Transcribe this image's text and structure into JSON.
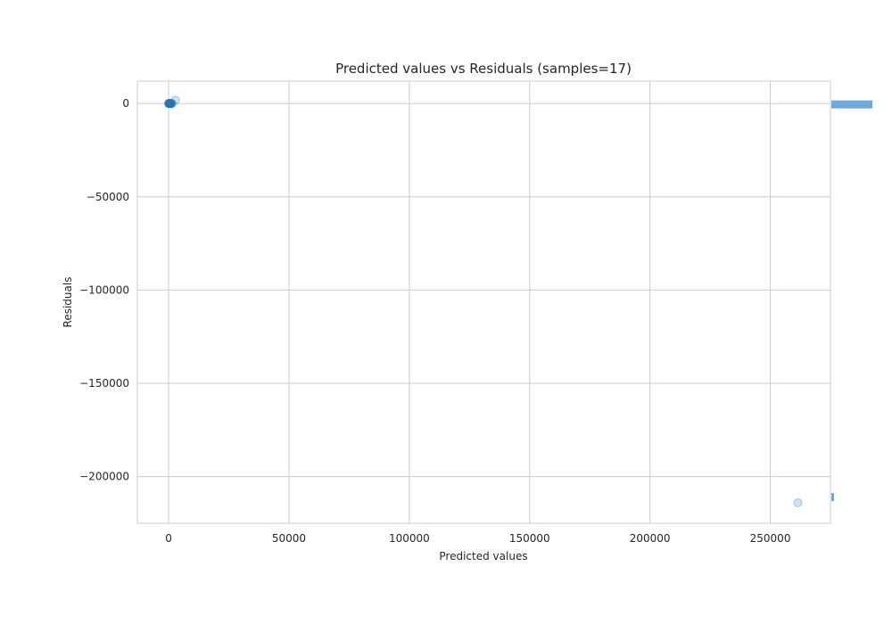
{
  "chart_data": {
    "type": "scatter",
    "title": "Predicted values vs Residuals (samples=17)",
    "xlabel": "Predicted values",
    "ylabel": "Residuals",
    "xlim": [
      -13000,
      275000
    ],
    "ylim": [
      -225000,
      12000
    ],
    "xticks": [
      0,
      50000,
      100000,
      150000,
      200000,
      250000
    ],
    "yticks": [
      0,
      -50000,
      -100000,
      -150000,
      -200000
    ],
    "grid": true,
    "point_color": "#1f77b4",
    "histogram_color": "#6fa8dc",
    "points": [
      {
        "x": 2800,
        "y": 1800
      },
      {
        "x": 1500,
        "y": 0
      },
      {
        "x": 1200,
        "y": -50
      },
      {
        "x": 1000,
        "y": 30
      },
      {
        "x": 900,
        "y": -80
      },
      {
        "x": 700,
        "y": 20
      },
      {
        "x": 600,
        "y": -30
      },
      {
        "x": 500,
        "y": 10
      },
      {
        "x": 400,
        "y": -20
      },
      {
        "x": 300,
        "y": 40
      },
      {
        "x": 250,
        "y": -10
      },
      {
        "x": 200,
        "y": 15
      },
      {
        "x": 150,
        "y": -5
      },
      {
        "x": 100,
        "y": 5
      },
      {
        "x": 50,
        "y": 0
      },
      {
        "x": 20,
        "y": -8
      },
      {
        "x": 261500,
        "y": -214000
      }
    ],
    "residual_histogram": [
      {
        "y": -500,
        "count": 16
      },
      {
        "y": -211000,
        "count": 1
      }
    ]
  }
}
